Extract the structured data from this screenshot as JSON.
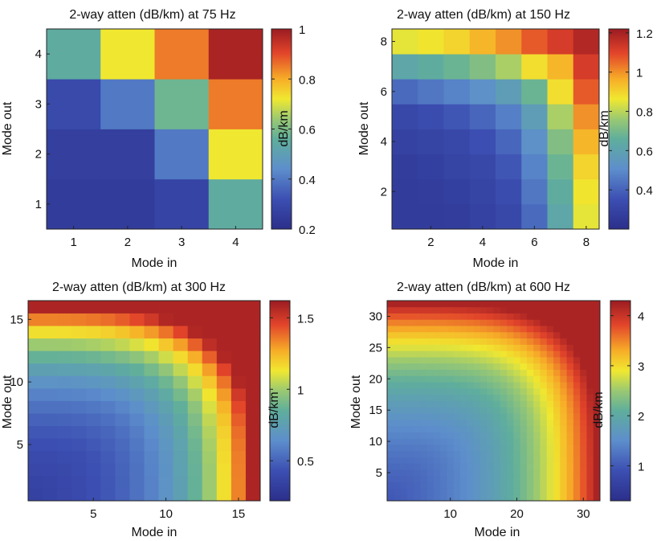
{
  "chart_data": [
    {
      "type": "heatmap",
      "title": "2-way atten (dB/km) at 75 Hz",
      "xlabel": "Mode in",
      "ylabel": "Mode out",
      "colorbar_label": "dB/km",
      "n": 4,
      "xticks": [
        1,
        2,
        3,
        4
      ],
      "yticks": [
        1,
        2,
        3,
        4
      ],
      "cticks": [
        0.2,
        0.4,
        0.6,
        0.8,
        1
      ],
      "clim": [
        0.2,
        1.0
      ],
      "grid": false,
      "values": [
        [
          0.25,
          0.25,
          0.28,
          0.55
        ],
        [
          0.26,
          0.26,
          0.4,
          0.72
        ],
        [
          0.3,
          0.4,
          0.58,
          0.85
        ],
        [
          0.55,
          0.72,
          0.85,
          0.98
        ]
      ]
    },
    {
      "type": "heatmap",
      "title": "2-way atten (dB/km) at 150 Hz",
      "xlabel": "Mode in",
      "ylabel": "Mode out",
      "colorbar_label": "dB/km",
      "n": 8,
      "xticks": [
        2,
        4,
        6,
        8
      ],
      "yticks": [
        2,
        4,
        6,
        8
      ],
      "cticks": [
        0.4,
        0.6,
        0.8,
        1,
        1.2
      ],
      "clim": [
        0.2,
        1.22
      ],
      "grid": false,
      "values": [
        [
          0.26,
          0.26,
          0.27,
          0.29,
          0.32,
          0.42,
          0.62,
          0.85
        ],
        [
          0.26,
          0.27,
          0.28,
          0.3,
          0.34,
          0.45,
          0.65,
          0.87
        ],
        [
          0.27,
          0.28,
          0.3,
          0.32,
          0.37,
          0.48,
          0.68,
          0.9
        ],
        [
          0.29,
          0.3,
          0.32,
          0.35,
          0.41,
          0.52,
          0.72,
          0.95
        ],
        [
          0.32,
          0.34,
          0.37,
          0.41,
          0.47,
          0.58,
          0.78,
          1.0
        ],
        [
          0.42,
          0.45,
          0.48,
          0.52,
          0.58,
          0.68,
          0.88,
          1.07
        ],
        [
          0.62,
          0.65,
          0.68,
          0.72,
          0.78,
          0.88,
          0.95,
          1.12
        ],
        [
          0.85,
          0.87,
          0.9,
          0.95,
          1.0,
          1.07,
          1.12,
          1.18
        ]
      ]
    },
    {
      "type": "heatmap",
      "title": "2-way atten (dB/km) at 300 Hz",
      "xlabel": "Mode in",
      "ylabel": "Mode out",
      "colorbar_label": "dB/km",
      "n": 16,
      "xticks": [
        5,
        10,
        15
      ],
      "yticks": [
        5,
        10,
        15
      ],
      "cticks": [
        0.5,
        1,
        1.5
      ],
      "clim": [
        0.22,
        1.62
      ],
      "grid": false,
      "decay": 3.2,
      "vmin": 0.28,
      "vmax": 1.58,
      "p": 3.5
    },
    {
      "type": "heatmap",
      "title": "2-way atten (dB/km) at 600 Hz",
      "xlabel": "Mode in",
      "ylabel": "Mode out",
      "colorbar_label": "dB/km",
      "n": 32,
      "xticks": [
        10,
        20,
        30
      ],
      "yticks": [
        5,
        10,
        15,
        20,
        25,
        30
      ],
      "cticks": [
        1,
        2,
        3,
        4
      ],
      "clim": [
        0.3,
        4.3
      ],
      "grid": false,
      "decay": 2.2,
      "vmin": 0.55,
      "vmax": 4.2,
      "p": 4.0
    }
  ]
}
